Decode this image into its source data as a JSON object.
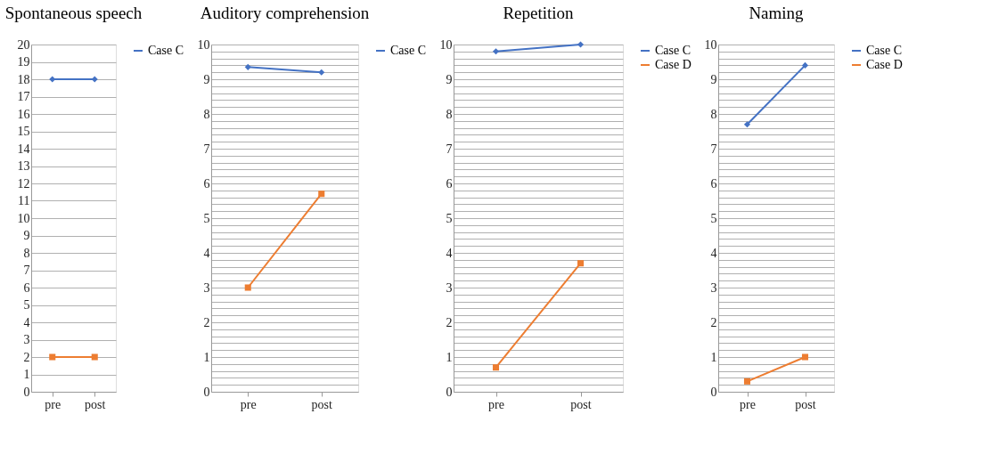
{
  "chart_data": [
    {
      "type": "line",
      "title": "Spontaneous speech",
      "categories": [
        "pre",
        "post"
      ],
      "ylim": [
        0,
        20
      ],
      "yticks": [
        0,
        1,
        2,
        3,
        4,
        5,
        6,
        7,
        8,
        9,
        10,
        11,
        12,
        13,
        14,
        15,
        16,
        17,
        18,
        19,
        20
      ],
      "grid": "y",
      "legend": "right",
      "series": [
        {
          "name": "Case C",
          "color": "#4472c4",
          "marker": "diamond",
          "values": [
            18,
            18
          ]
        },
        {
          "color": "#ed7d31",
          "marker": "square",
          "values": [
            2,
            2
          ]
        }
      ]
    },
    {
      "type": "line",
      "title": "Auditory comprehension",
      "categories": [
        "pre",
        "post"
      ],
      "ylim": [
        0,
        10
      ],
      "yticks": [
        0,
        {
          "value": 0.2,
          "label": null
        },
        {
          "value": 0.4,
          "label": null
        },
        {
          "value": 0.6,
          "label": null
        },
        {
          "value": 0.8,
          "label": null
        },
        1,
        {
          "value": 1.2,
          "label": null
        },
        {
          "value": 1.4,
          "label": null
        },
        {
          "value": 1.6,
          "label": null
        },
        {
          "value": 1.8,
          "label": null
        },
        2,
        {
          "value": 2.2,
          "label": null
        },
        {
          "value": 2.4,
          "label": null
        },
        {
          "value": 2.6,
          "label": null
        },
        {
          "value": 2.8,
          "label": null
        },
        3,
        {
          "value": 3.2,
          "label": null
        },
        {
          "value": 3.4,
          "label": null
        },
        {
          "value": 3.6,
          "label": null
        },
        {
          "value": 3.8,
          "label": null
        },
        4,
        {
          "value": 4.2,
          "label": null
        },
        {
          "value": 4.4,
          "label": null
        },
        {
          "value": 4.6,
          "label": null
        },
        {
          "value": 4.8,
          "label": null
        },
        5,
        {
          "value": 5.2,
          "label": null
        },
        {
          "value": 5.4,
          "label": null
        },
        {
          "value": 5.6,
          "label": null
        },
        {
          "value": 5.8,
          "label": null
        },
        6,
        {
          "value": 6.2,
          "label": null
        },
        {
          "value": 6.4,
          "label": null
        },
        {
          "value": 6.6,
          "label": null
        },
        {
          "value": 6.8,
          "label": null
        },
        7,
        {
          "value": 7.2,
          "label": null
        },
        {
          "value": 7.4,
          "label": null
        },
        {
          "value": 7.6,
          "label": null
        },
        {
          "value": 7.8,
          "label": null
        },
        8,
        {
          "value": 8.2,
          "label": null
        },
        {
          "value": 8.4,
          "label": null
        },
        {
          "value": 8.6,
          "label": null
        },
        {
          "value": 8.8,
          "label": null
        },
        9,
        {
          "value": 9.2,
          "label": null
        },
        {
          "value": 9.4,
          "label": null
        },
        {
          "value": 9.6,
          "label": null
        },
        {
          "value": 9.8,
          "label": null
        },
        10
      ],
      "grid": "y",
      "legend": "right",
      "series": [
        {
          "name": "Case C",
          "color": "#4472c4",
          "marker": "diamond",
          "values": [
            9.35,
            9.2
          ]
        },
        {
          "color": "#ed7d31",
          "marker": "square",
          "values": [
            3.0,
            5.7
          ]
        }
      ]
    },
    {
      "type": "line",
      "title": "Repetition",
      "categories": [
        "pre",
        "post"
      ],
      "ylim": [
        0,
        10
      ],
      "yticks": [
        0,
        {
          "value": 0.2,
          "label": null
        },
        {
          "value": 0.4,
          "label": null
        },
        {
          "value": 0.6,
          "label": null
        },
        {
          "value": 0.8,
          "label": null
        },
        1,
        {
          "value": 1.2,
          "label": null
        },
        {
          "value": 1.4,
          "label": null
        },
        {
          "value": 1.6,
          "label": null
        },
        {
          "value": 1.8,
          "label": null
        },
        2,
        {
          "value": 2.2,
          "label": null
        },
        {
          "value": 2.4,
          "label": null
        },
        {
          "value": 2.6,
          "label": null
        },
        {
          "value": 2.8,
          "label": null
        },
        3,
        {
          "value": 3.2,
          "label": null
        },
        {
          "value": 3.4,
          "label": null
        },
        {
          "value": 3.6,
          "label": null
        },
        {
          "value": 3.8,
          "label": null
        },
        4,
        {
          "value": 4.2,
          "label": null
        },
        {
          "value": 4.4,
          "label": null
        },
        {
          "value": 4.6,
          "label": null
        },
        {
          "value": 4.8,
          "label": null
        },
        5,
        {
          "value": 5.2,
          "label": null
        },
        {
          "value": 5.4,
          "label": null
        },
        {
          "value": 5.6,
          "label": null
        },
        {
          "value": 5.8,
          "label": null
        },
        6,
        {
          "value": 6.2,
          "label": null
        },
        {
          "value": 6.4,
          "label": null
        },
        {
          "value": 6.6,
          "label": null
        },
        {
          "value": 6.8,
          "label": null
        },
        7,
        {
          "value": 7.2,
          "label": null
        },
        {
          "value": 7.4,
          "label": null
        },
        {
          "value": 7.6,
          "label": null
        },
        {
          "value": 7.8,
          "label": null
        },
        8,
        {
          "value": 8.2,
          "label": null
        },
        {
          "value": 8.4,
          "label": null
        },
        {
          "value": 8.6,
          "label": null
        },
        {
          "value": 8.8,
          "label": null
        },
        9,
        {
          "value": 9.2,
          "label": null
        },
        {
          "value": 9.4,
          "label": null
        },
        {
          "value": 9.6,
          "label": null
        },
        {
          "value": 9.8,
          "label": null
        },
        10
      ],
      "grid": "y",
      "legend": "right",
      "series": [
        {
          "name": "Case C",
          "color": "#4472c4",
          "marker": "diamond",
          "values": [
            9.8,
            10.0
          ]
        },
        {
          "name": "Case D",
          "color": "#ed7d31",
          "marker": "square",
          "values": [
            0.7,
            3.7
          ]
        }
      ]
    },
    {
      "type": "line",
      "title": "Naming",
      "categories": [
        "pre",
        "post"
      ],
      "ylim": [
        0,
        10
      ],
      "yticks": [
        0,
        {
          "value": 0.2,
          "label": null
        },
        {
          "value": 0.4,
          "label": null
        },
        {
          "value": 0.6,
          "label": null
        },
        {
          "value": 0.8,
          "label": null
        },
        1,
        {
          "value": 1.2,
          "label": null
        },
        {
          "value": 1.4,
          "label": null
        },
        {
          "value": 1.6,
          "label": null
        },
        {
          "value": 1.8,
          "label": null
        },
        2,
        {
          "value": 2.2,
          "label": null
        },
        {
          "value": 2.4,
          "label": null
        },
        {
          "value": 2.6,
          "label": null
        },
        {
          "value": 2.8,
          "label": null
        },
        3,
        {
          "value": 3.2,
          "label": null
        },
        {
          "value": 3.4,
          "label": null
        },
        {
          "value": 3.6,
          "label": null
        },
        {
          "value": 3.8,
          "label": null
        },
        4,
        {
          "value": 4.2,
          "label": null
        },
        {
          "value": 4.4,
          "label": null
        },
        {
          "value": 4.6,
          "label": null
        },
        {
          "value": 4.8,
          "label": null
        },
        5,
        {
          "value": 5.2,
          "label": null
        },
        {
          "value": 5.4,
          "label": null
        },
        {
          "value": 5.6,
          "label": null
        },
        {
          "value": 5.8,
          "label": null
        },
        6,
        {
          "value": 6.2,
          "label": null
        },
        {
          "value": 6.4,
          "label": null
        },
        {
          "value": 6.6,
          "label": null
        },
        {
          "value": 6.8,
          "label": null
        },
        7,
        {
          "value": 7.2,
          "label": null
        },
        {
          "value": 7.4,
          "label": null
        },
        {
          "value": 7.6,
          "label": null
        },
        {
          "value": 7.8,
          "label": null
        },
        8,
        {
          "value": 8.2,
          "label": null
        },
        {
          "value": 8.4,
          "label": null
        },
        {
          "value": 8.6,
          "label": null
        },
        {
          "value": 8.8,
          "label": null
        },
        9,
        {
          "value": 9.2,
          "label": null
        },
        {
          "value": 9.4,
          "label": null
        },
        {
          "value": 9.6,
          "label": null
        },
        {
          "value": 9.8,
          "label": null
        },
        10
      ],
      "grid": "y",
      "legend": "right",
      "series": [
        {
          "name": "Case C",
          "color": "#4472c4",
          "marker": "diamond",
          "values": [
            7.7,
            9.4
          ]
        },
        {
          "name": "Case D",
          "color": "#ed7d31",
          "marker": "square",
          "values": [
            0.3,
            1.0
          ]
        }
      ]
    }
  ]
}
